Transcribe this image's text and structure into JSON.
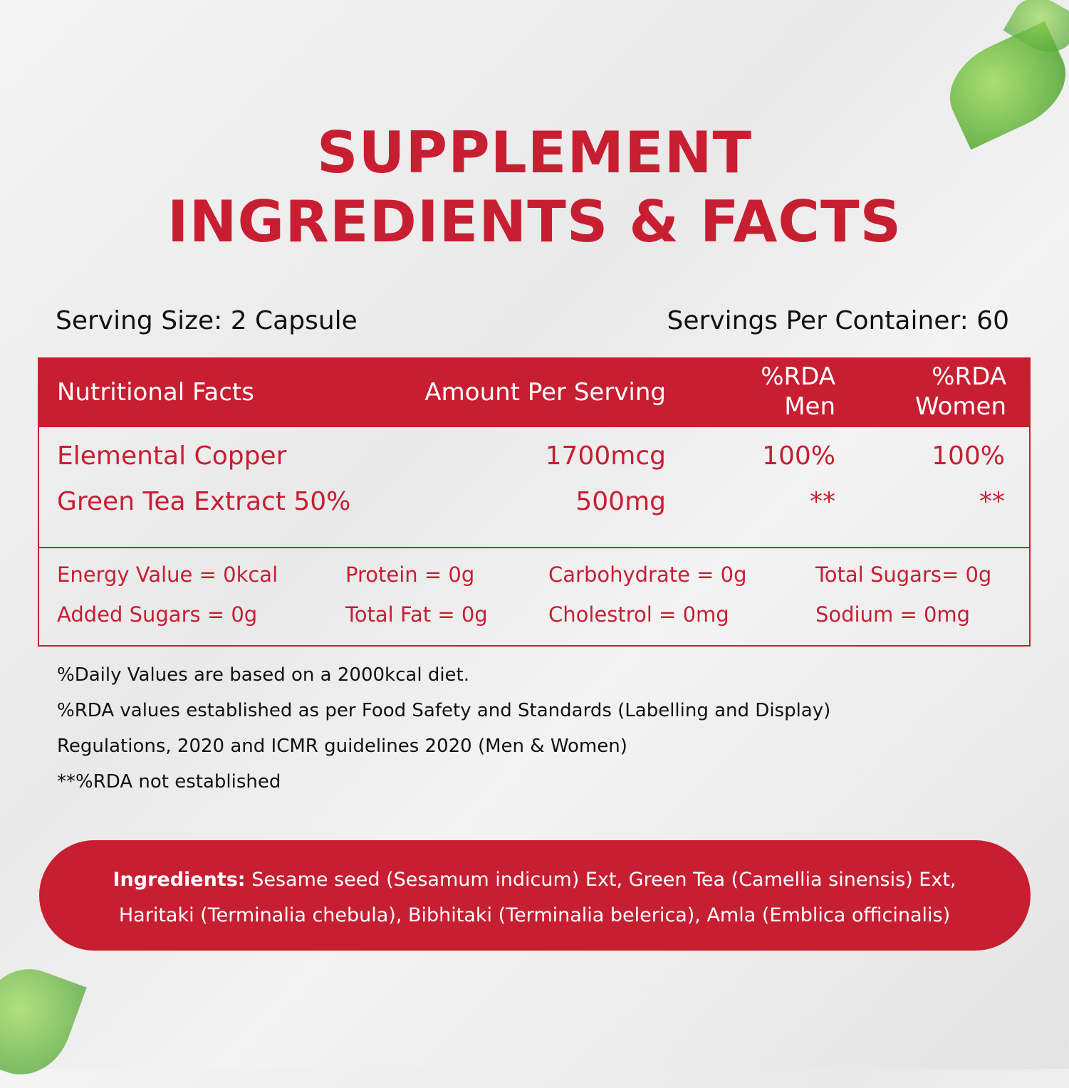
{
  "title": {
    "line1": "SUPPLEMENT",
    "line2": "INGREDIENTS & FACTS"
  },
  "serving": {
    "size": "Serving Size: 2 Capsule",
    "per_container": "Servings Per Container: 60"
  },
  "table": {
    "header": [
      "Nutritional Facts",
      "Amount Per Serving",
      "%RDA\nMen",
      "%RDA\nWomen"
    ],
    "rows": [
      [
        "Elemental Copper",
        "1700mcg",
        "100%",
        "100%"
      ],
      [
        "Green Tea Extract 50%",
        "500mg",
        "**",
        "**"
      ]
    ],
    "nutrients": [
      [
        "Energy Value = 0kcal",
        "Protein = 0g",
        "Carbohydrate = 0g",
        "Total Sugars= 0g"
      ],
      [
        "Added Sugars = 0g",
        "Total Fat = 0g",
        "Cholestrol = 0mg",
        "Sodium = 0mg"
      ]
    ]
  },
  "notes": [
    "%Daily Values are based on a 2000kcal diet.",
    "%RDA values established as per Food Safety and Standards (Labelling and Display)",
    "Regulations, 2020 and ICMR guidelines 2020 (Men & Women)",
    "**%RDA not established"
  ],
  "ingredients": {
    "label": "Ingredients:",
    "lines": [
      "Sesame seed (Sesamum indicum) Ext, Green Tea (Camellia sinensis) Ext,",
      "Haritaki (Terminalia chebula), Bibhitaki (Terminalia belerica), Amla (Emblica officinalis)"
    ]
  }
}
